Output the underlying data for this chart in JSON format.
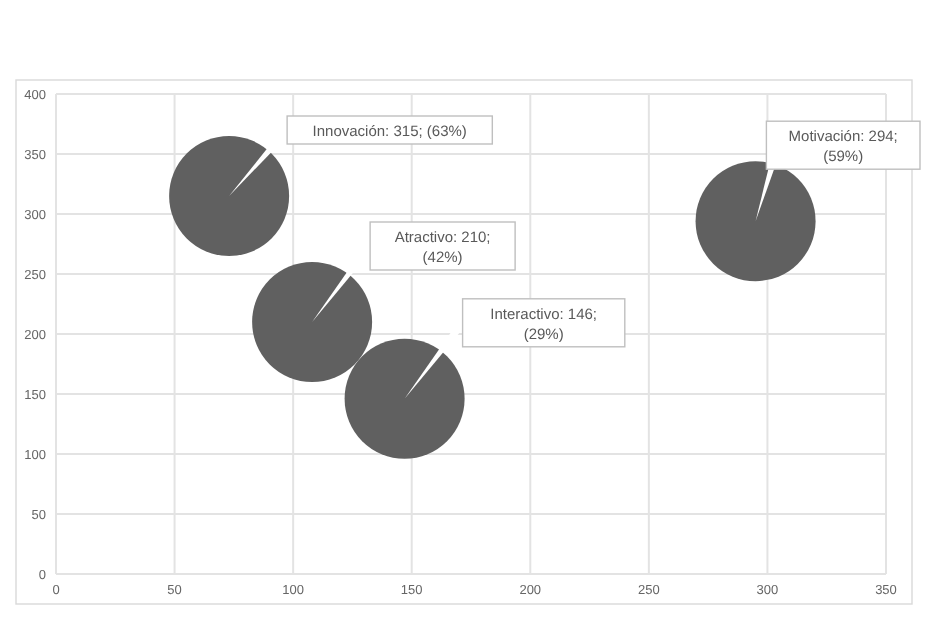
{
  "chart_data": {
    "type": "bubble",
    "xlim": [
      0,
      350
    ],
    "xticks": [
      0,
      50,
      100,
      150,
      200,
      250,
      300,
      350
    ],
    "ylim": [
      0,
      400
    ],
    "yticks": [
      0,
      50,
      100,
      150,
      200,
      250,
      300,
      350,
      400
    ],
    "grid": true,
    "series": [
      {
        "color": "#606060",
        "x": [
          73,
          108,
          147,
          295
        ],
        "values": [
          315,
          210,
          146,
          294
        ],
        "sizes": [
          1,
          1,
          1,
          1
        ],
        "value_labels": [
          "Innovación: 315; (63%)",
          "Atractivo: 210; (42%)",
          "Interactivo: 146; (29%)",
          "Motivación: 294; (59%)"
        ]
      }
    ]
  }
}
